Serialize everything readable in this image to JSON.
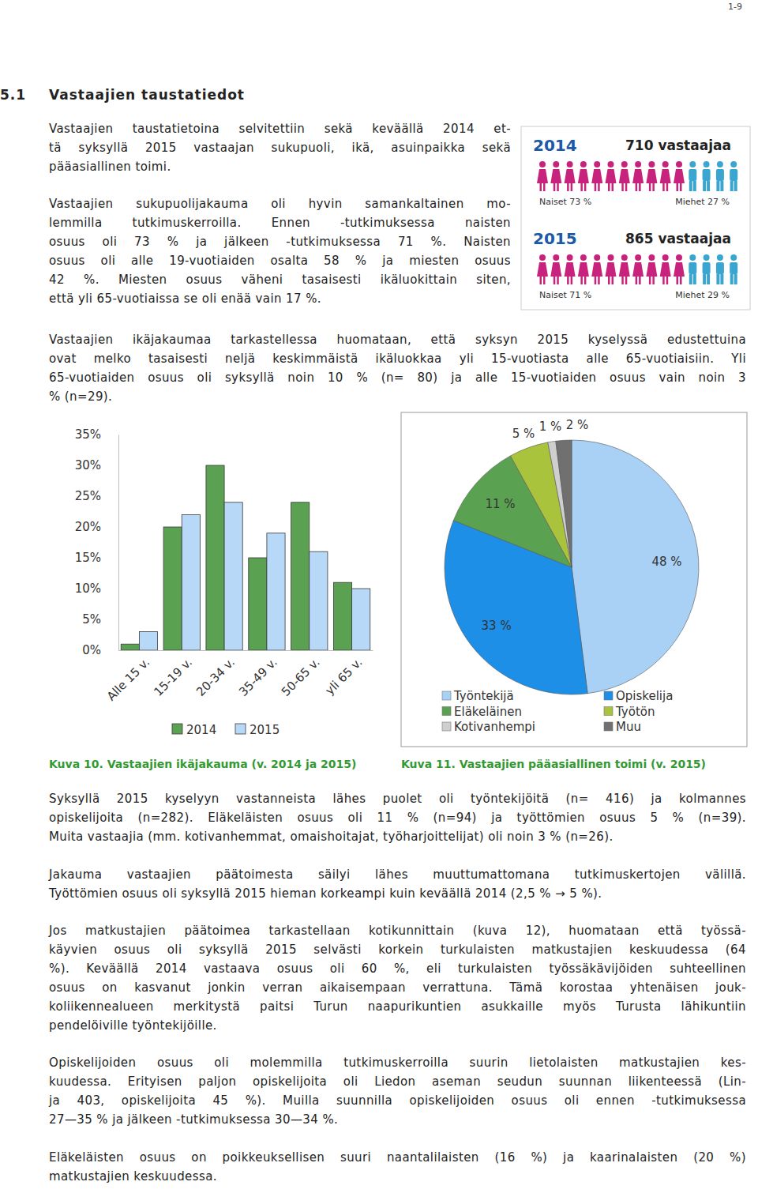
{
  "page_number": "1-9",
  "heading": {
    "number": "5.1",
    "title": "Vastaajien taustatiedot"
  },
  "paragraphs": [
    {
      "lines": [
        "Vastaajien taustatietoina selvitettiin sekä keväällä 2014 et-",
        "tä syksyllä 2015 vastaajan sukupuoli, ikä, asuinpaikka sekä",
        "pääasiallinen toimi."
      ]
    },
    {
      "lines": [
        "Vastaajien sukupuolijakauma oli hyvin samankaltainen mo-",
        "lemmilla tutkimuskerroilla. Ennen -tutkimuksessa naisten",
        "osuus oli 73 % ja jälkeen -tutkimuksessa 71 %. Naisten",
        "osuus oli alle 19-vuotiaiden osalta 58 % ja miesten osuus",
        "42 %. Miesten osuus väheni tasaisesti ikäluokittain siten,",
        "että yli 65-vuotiaissa se oli enää vain 17 %."
      ]
    },
    {
      "lines": [
        "Vastaajien ikäjakaumaa tarkastellessa huomataan, että syksyn 2015 kyselyssä edustettuina",
        "ovat melko tasaisesti neljä keskimmäistä ikäluokkaa yli 15-vuotiasta alle 65-vuotiaisiin. Yli",
        "65-vuotiaiden osuus oli syksyllä noin 10 % (n= 80) ja alle 15-vuotiaiden osuus vain noin 3",
        "% (n=29)."
      ]
    },
    {
      "lines": [
        "Syksyllä 2015 kyselyyn vastanneista lähes puolet oli työntekijöitä (n= 416) ja kolmannes",
        "opiskelijoita (n=282). Eläkeläisten osuus oli 11 % (n=94) ja työttömien osuus 5 % (n=39).",
        "Muita vastaajia (mm. kotivanhemmat, omaishoitajat, työharjoittelijat) oli noin 3 % (n=26)."
      ]
    },
    {
      "lines": [
        "Jakauma vastaajien päätoimesta säilyi lähes muuttumattomana tutkimuskertojen välillä.",
        "Työttömien osuus oli syksyllä 2015 hieman korkeampi kuin keväällä 2014 (2,5 % → 5 %)."
      ]
    },
    {
      "lines": [
        "Jos matkustajien päätoimea tarkastellaan kotikunnittain (kuva 12), huomataan että työssä-",
        "käyvien osuus oli syksyllä 2015 selvästi korkein turkulaisten matkustajien keskuudessa (64",
        "%). Keväällä 2014 vastaava osuus oli 60 %, eli turkulaisten työssäkävijöiden suhteellinen",
        "osuus on kasvanut jonkin verran aikaisempaan verrattuna. Tämä korostaa yhtenäisen jouk-",
        "koliikennealueen merkitystä paitsi Turun naapurikuntien asukkaille myös Turusta lähikuntiin",
        "pendelöiville työntekijöille."
      ]
    },
    {
      "lines": [
        "Opiskelijoiden osuus oli molemmilla tutkimuskerroilla suurin lietolaisten matkustajien kes-",
        "kuudessa. Erityisen paljon opiskelijoita oli Liedon aseman seudun suunnan liikenteessä (Lin-",
        "ja 403, opiskelijoita 45 %). Muilla suunnilla opiskelijoiden osuus oli ennen -tutkimuksessa",
        "27—35 % ja jälkeen -tutkimuksessa 30—34 %."
      ]
    },
    {
      "lines": [
        "Eläkeläisten osuus on poikkeuksellisen suuri naantalilaisten (16 %) ja kaarinalaisten (20 %)",
        "matkustajien keskuudessa."
      ]
    }
  ],
  "infographic": [
    {
      "year": "2014",
      "respondents": "710 vastaajaa",
      "women": "Naiset 73 %",
      "men": "Miehet 27 %"
    },
    {
      "year": "2015",
      "respondents": "865 vastaajaa",
      "women": "Naiset 71 %",
      "men": "Miehet 29 %"
    }
  ],
  "chart_data": [
    {
      "type": "bar",
      "title": "Kuva 10. Vastaajien ikäjakauma (v. 2014 ja 2015)",
      "categories": [
        "Alle 15 v.",
        "15-19 v.",
        "20-34 v.",
        "35-49 v.",
        "50-65 v.",
        "yli 65 v."
      ],
      "series": [
        {
          "name": "2014",
          "color": "#5ba152",
          "values": [
            1,
            20,
            30,
            15,
            24,
            11
          ]
        },
        {
          "name": "2015",
          "color": "#b8d8f8",
          "values": [
            3,
            22,
            24,
            19,
            16,
            10
          ]
        }
      ],
      "ylim": [
        0,
        35
      ],
      "yticks": [
        {
          "value": 0,
          "label": "0%"
        },
        {
          "value": 5,
          "label": "5%"
        },
        {
          "value": 10,
          "label": "10%"
        },
        {
          "value": 15,
          "label": "15%"
        },
        {
          "value": 20,
          "label": "20%"
        },
        {
          "value": 25,
          "label": "25%"
        },
        {
          "value": 30,
          "label": "30%"
        },
        {
          "value": 35,
          "label": "35%"
        }
      ],
      "grid": false,
      "legend": "bottom"
    },
    {
      "type": "pie",
      "title": "Kuva 11. Vastaajien pääasiallinen toimi (v. 2015)",
      "categories": [
        "Työntekijä",
        "Opiskelija",
        "Eläkeläinen",
        "Työtön",
        "Kotivanhempi",
        "Muu"
      ],
      "values": [
        48,
        33,
        11,
        5,
        1,
        2
      ],
      "value_labels": [
        "48 %",
        "33 %",
        "11 %",
        "5 %",
        "1 %",
        "2 %"
      ],
      "colors": [
        "#a9d1f5",
        "#1e8fe6",
        "#5ba152",
        "#a9c43c",
        "#cfcfcf",
        "#707070"
      ],
      "data_labels": true,
      "legend": "bottom"
    }
  ]
}
